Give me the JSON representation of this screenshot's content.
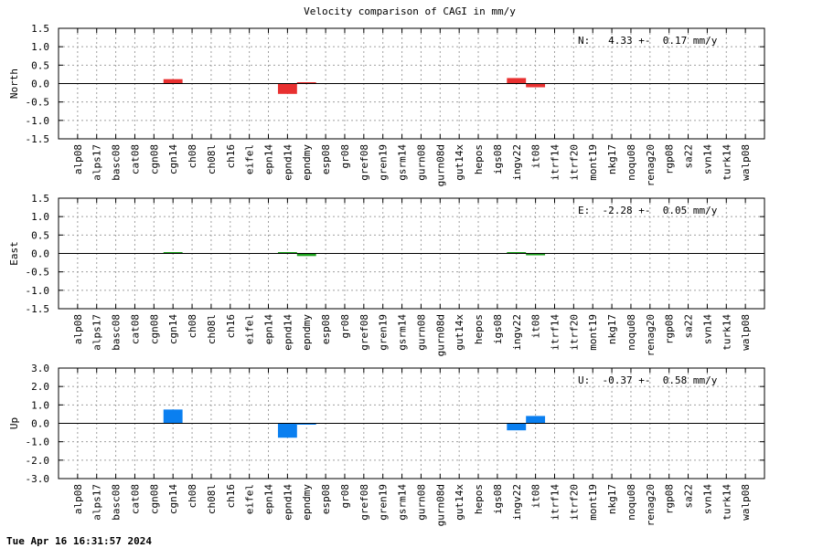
{
  "title": "Velocity comparison of CAGI in mm/y",
  "timestamp": "Tue Apr 16 16:31:57 2024",
  "chart_data": {
    "type": "bar",
    "categories": [
      "alp08",
      "alps17",
      "basc08",
      "cat08",
      "cgn08",
      "cgn14",
      "ch08",
      "ch08l",
      "ch16",
      "eifel",
      "epn14",
      "epnd14",
      "epndmy",
      "esp08",
      "gr08",
      "gref08",
      "gren19",
      "gsrm14",
      "gurn08",
      "gurn08d",
      "gut14x",
      "hepos",
      "igs08",
      "ingv22",
      "it08",
      "itrf14",
      "itrf20",
      "mont19",
      "nkg17",
      "noqu08",
      "renag20",
      "rgp08",
      "sa22",
      "svn14",
      "turk14",
      "walp08"
    ],
    "grid": true,
    "panels": [
      {
        "ylabel": "North",
        "ylim": [
          -1.5,
          1.5
        ],
        "yticks": [
          "1.5",
          "1.0",
          "0.5",
          "0.0",
          "-0.5",
          "-1.0",
          "-1.5"
        ],
        "stat": "N:   4.33 +-  0.17 mm/y",
        "color": "#e83030",
        "values": [
          null,
          null,
          null,
          null,
          null,
          0.12,
          null,
          null,
          null,
          null,
          null,
          -0.28,
          0.02,
          null,
          null,
          null,
          null,
          null,
          null,
          null,
          null,
          null,
          null,
          0.15,
          -0.1,
          null,
          null,
          null,
          null,
          null,
          null,
          null,
          null,
          null,
          null,
          null
        ]
      },
      {
        "ylabel": "East",
        "ylim": [
          -1.5,
          1.5
        ],
        "yticks": [
          "1.5",
          "1.0",
          "0.5",
          "0.0",
          "-0.5",
          "-1.0",
          "-1.5"
        ],
        "stat": "E:  -2.28 +-  0.05 mm/y",
        "color": "#1aa01a",
        "values": [
          null,
          null,
          null,
          null,
          null,
          0.02,
          null,
          null,
          null,
          null,
          null,
          0.02,
          -0.07,
          null,
          null,
          null,
          null,
          null,
          null,
          null,
          null,
          null,
          null,
          0.02,
          -0.05,
          null,
          null,
          null,
          null,
          null,
          null,
          null,
          null,
          null,
          null,
          null
        ]
      },
      {
        "ylabel": "Up",
        "ylim": [
          -3.0,
          3.0
        ],
        "yticks": [
          "3.0",
          "2.0",
          "1.0",
          "0.0",
          "-1.0",
          "-2.0",
          "-3.0"
        ],
        "stat": "U:  -0.37 +-  0.58 mm/y",
        "color": "#0a7ff0",
        "values": [
          null,
          null,
          null,
          null,
          null,
          0.75,
          null,
          null,
          null,
          null,
          null,
          -0.78,
          -0.05,
          null,
          null,
          null,
          null,
          null,
          null,
          null,
          null,
          null,
          null,
          -0.38,
          0.4,
          null,
          null,
          null,
          null,
          null,
          null,
          null,
          null,
          null,
          null,
          null
        ]
      }
    ]
  }
}
